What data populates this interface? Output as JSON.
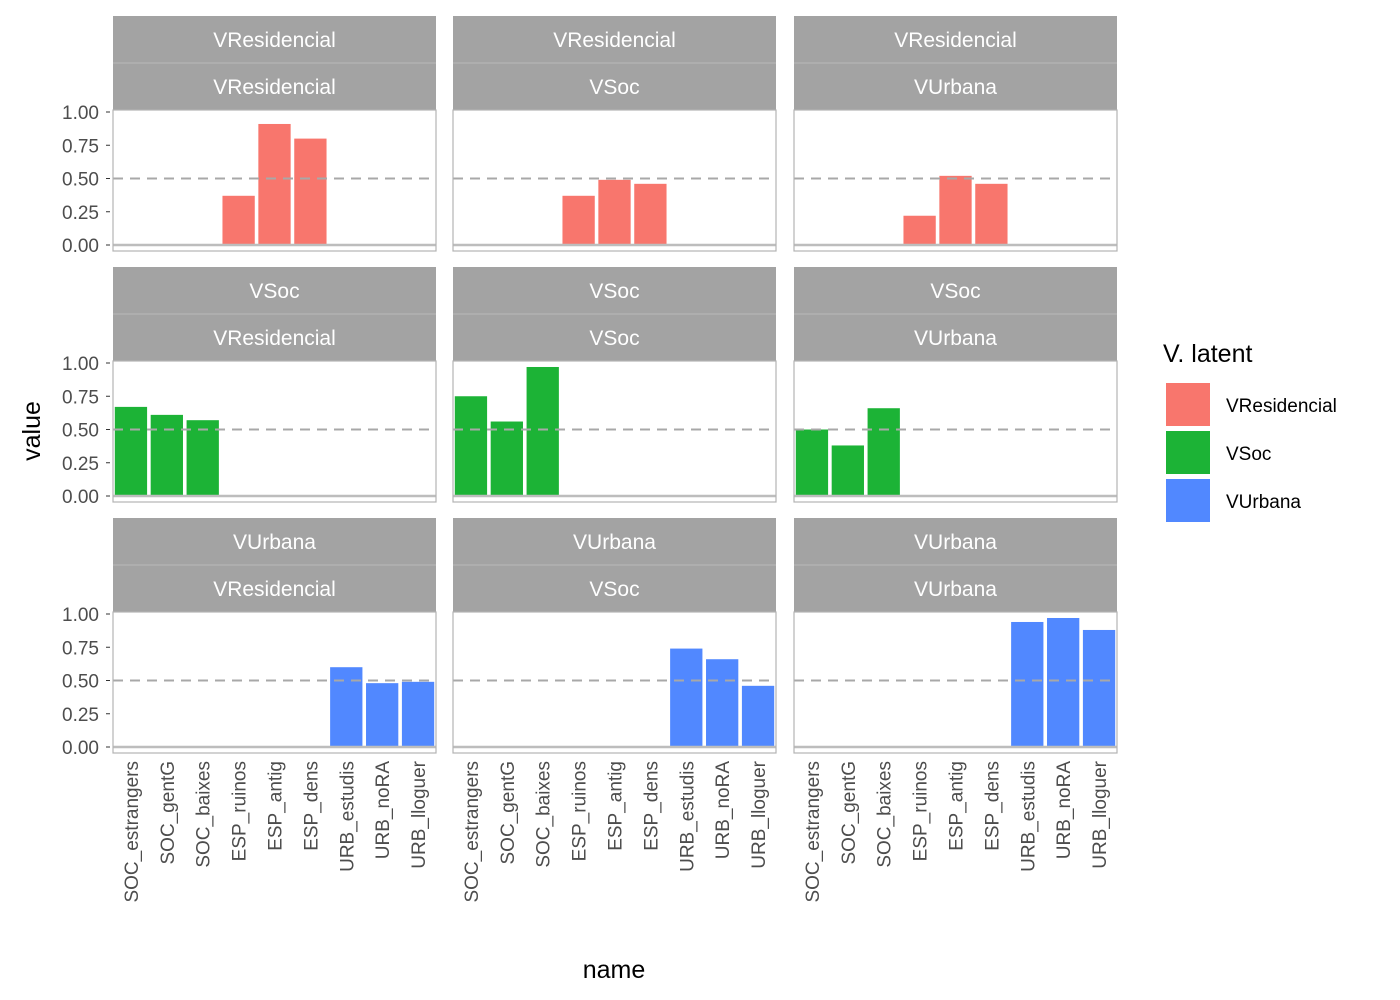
{
  "chart_data": {
    "type": "bar",
    "facet_layout": "grid",
    "x_title": "name",
    "y_title": "value",
    "categories": [
      "SOC_estrangers",
      "SOC_gentG",
      "SOC_baixes",
      "ESP_ruinos",
      "ESP_antig",
      "ESP_dens",
      "URB_estudis",
      "URB_noRA",
      "URB_lloguer"
    ],
    "row_facets": [
      "VResidencial",
      "VSoc",
      "VUrbana"
    ],
    "col_facets": [
      "VResidencial",
      "VSoc",
      "VUrbana"
    ],
    "ylim": [
      0,
      1
    ],
    "yticks": [
      "0.00",
      "0.25",
      "0.50",
      "0.75",
      "1.00"
    ],
    "reference_line": 0.5,
    "legend": {
      "title": "V. latent",
      "placement": "right",
      "items": [
        {
          "name": "VResidencial",
          "color": "#f8766d"
        },
        {
          "name": "VSoc",
          "color": "#1cb336"
        },
        {
          "name": "VUrbana",
          "color": "#5188ff"
        }
      ]
    },
    "panels": [
      {
        "row": "VResidencial",
        "col": "VResidencial",
        "color": "#f8766d",
        "values": [
          null,
          null,
          null,
          0.37,
          0.91,
          0.8,
          null,
          null,
          null
        ]
      },
      {
        "row": "VResidencial",
        "col": "VSoc",
        "color": "#f8766d",
        "values": [
          null,
          null,
          null,
          0.37,
          0.49,
          0.46,
          null,
          null,
          null
        ]
      },
      {
        "row": "VResidencial",
        "col": "VUrbana",
        "color": "#f8766d",
        "values": [
          null,
          null,
          null,
          0.22,
          0.52,
          0.46,
          null,
          null,
          null
        ]
      },
      {
        "row": "VSoc",
        "col": "VResidencial",
        "color": "#1cb336",
        "values": [
          0.67,
          0.61,
          0.57,
          null,
          null,
          null,
          null,
          null,
          null
        ]
      },
      {
        "row": "VSoc",
        "col": "VSoc",
        "color": "#1cb336",
        "values": [
          0.75,
          0.56,
          0.97,
          null,
          null,
          null,
          null,
          null,
          null
        ]
      },
      {
        "row": "VSoc",
        "col": "VUrbana",
        "color": "#1cb336",
        "values": [
          0.5,
          0.38,
          0.66,
          null,
          null,
          null,
          null,
          null,
          null
        ]
      },
      {
        "row": "VUrbana",
        "col": "VResidencial",
        "color": "#5188ff",
        "values": [
          null,
          null,
          null,
          null,
          null,
          null,
          0.6,
          0.48,
          0.49
        ]
      },
      {
        "row": "VUrbana",
        "col": "VSoc",
        "color": "#5188ff",
        "values": [
          null,
          null,
          null,
          null,
          null,
          null,
          0.74,
          0.66,
          0.46
        ]
      },
      {
        "row": "VUrbana",
        "col": "VUrbana",
        "color": "#5188ff",
        "values": [
          null,
          null,
          null,
          null,
          null,
          null,
          0.94,
          0.97,
          0.88
        ]
      }
    ]
  }
}
